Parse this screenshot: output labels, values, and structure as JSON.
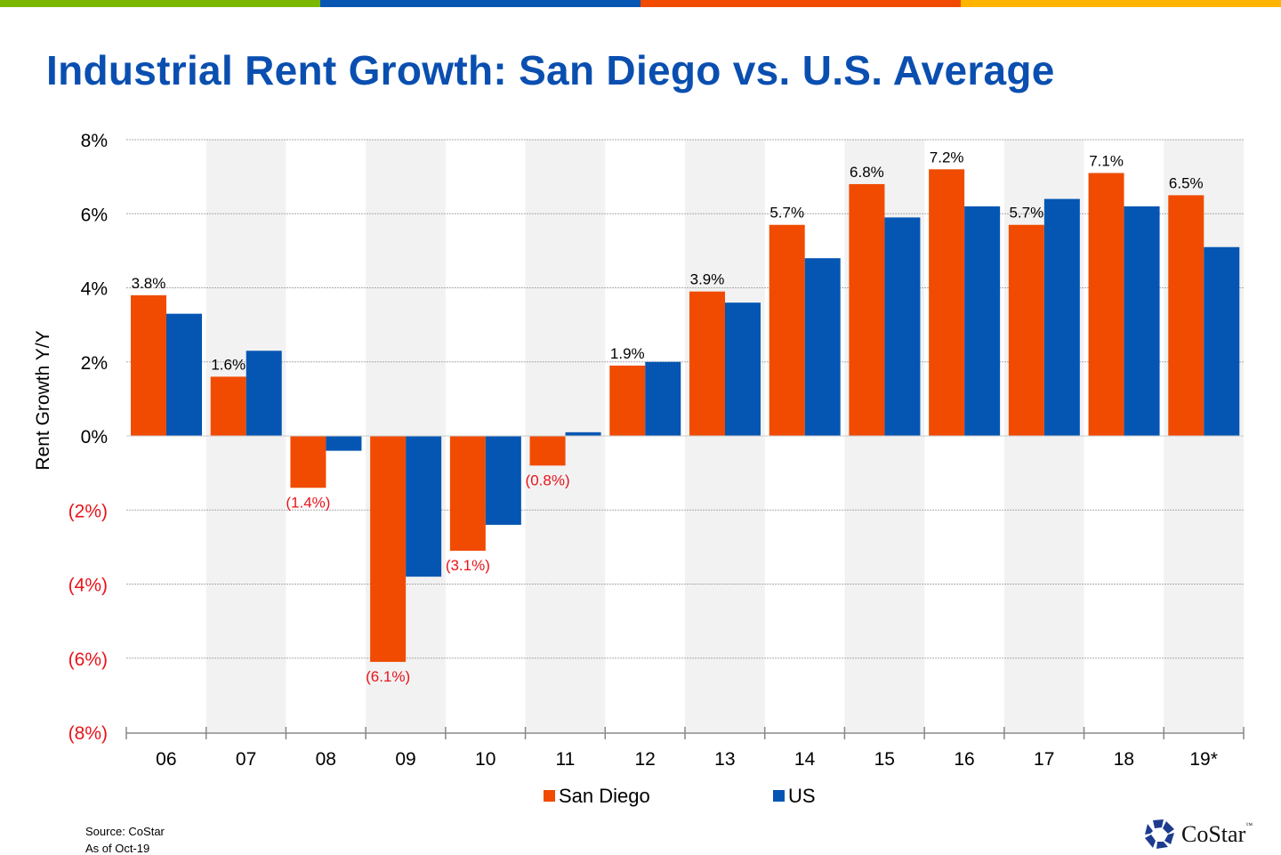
{
  "header": {
    "title": "Industrial Rent Growth: San Diego vs. U.S. Average",
    "stripe_colors": [
      "#7ab800",
      "#0556b3",
      "#f04b00",
      "#ffb400"
    ]
  },
  "chart_data": {
    "type": "bar",
    "title": "Industrial Rent Growth: San Diego vs. U.S. Average",
    "ylabel": "Rent Growth Y/Y",
    "xlabel": "",
    "ylim": [
      -8,
      8
    ],
    "yticks": [
      8,
      6,
      4,
      2,
      0,
      -2,
      -4,
      -6,
      -8
    ],
    "ytick_labels": [
      "8%",
      "6%",
      "4%",
      "2%",
      "0%",
      "(2%)",
      "(4%)",
      "(6%)",
      "(8%)"
    ],
    "categories": [
      "06",
      "07",
      "08",
      "09",
      "10",
      "11",
      "12",
      "13",
      "14",
      "15",
      "16",
      "17",
      "18",
      "19*"
    ],
    "series": [
      {
        "name": "San Diego",
        "color": "#f04b00",
        "values": [
          3.8,
          1.6,
          -1.4,
          -6.1,
          -3.1,
          -0.8,
          1.9,
          3.9,
          5.7,
          6.8,
          7.2,
          5.7,
          7.1,
          6.5
        ],
        "labels": [
          "3.8%",
          "1.6%",
          "(1.4%)",
          "(6.1%)",
          "(3.1%)",
          "(0.8%)",
          "1.9%",
          "3.9%",
          "5.7%",
          "6.8%",
          "7.2%",
          "5.7%",
          "7.1%",
          "6.5%"
        ]
      },
      {
        "name": "US",
        "color": "#0556b3",
        "values": [
          3.3,
          2.3,
          -0.4,
          -3.8,
          -2.4,
          0.1,
          2.0,
          3.6,
          4.8,
          5.9,
          6.2,
          6.4,
          6.2,
          5.1
        ]
      }
    ],
    "negative_label_color": "#e8141b",
    "alternate_band_color": "#f2f2f2",
    "grid": true,
    "legend": "bottom"
  },
  "footer": {
    "source": "Source: CoStar",
    "as_of": "As of Oct-19",
    "logo": "CoStar"
  }
}
